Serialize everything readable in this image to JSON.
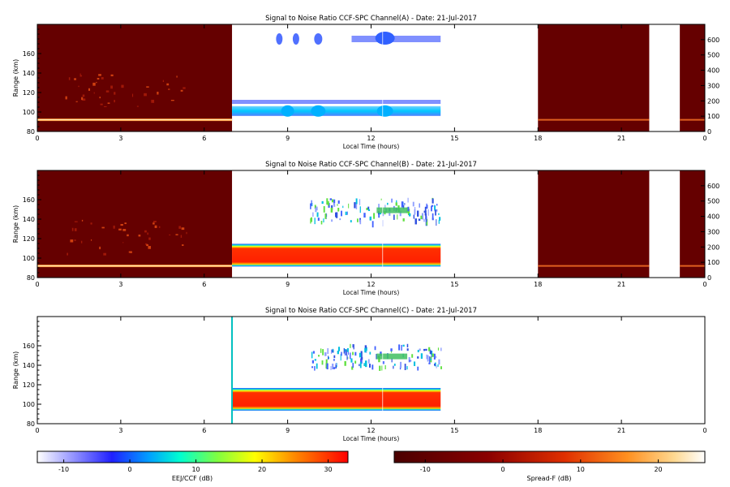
{
  "page": {
    "colorbar_left_label": "EEJ/CCF (dB)",
    "colorbar_right_label": "Spread-F (dB)"
  },
  "chart_data": [
    {
      "type": "heatmap",
      "title": "Signal to Noise Ratio CCF-SPC Channel(A) - Date: 21-Jul-2017",
      "xlabel": "Local Time (hours)",
      "ylabel": "Range (km)",
      "xlim": [
        0,
        24
      ],
      "ylim": [
        80,
        190
      ],
      "xticks": [
        "0",
        "3",
        "6",
        "9",
        "12",
        "15",
        "18",
        "21",
        "0"
      ],
      "yticks": [
        "80",
        "100",
        "120",
        "140",
        "160"
      ],
      "right_ylim": [
        0,
        700
      ],
      "right_yticks": [
        "0",
        "100",
        "200",
        "300",
        "400",
        "500",
        "600"
      ],
      "spreadf_blocks_hours": [
        [
          0,
          7
        ],
        [
          18,
          22
        ],
        [
          23.1,
          24
        ]
      ],
      "spreadf_layer_range_km": 92,
      "eej_time_hours": [
        7,
        14.5
      ],
      "eej_layers": [
        {
          "range_km": 101,
          "snr_db": 0
        },
        {
          "range_km": 110,
          "snr_db": -12
        },
        {
          "range_km": 175,
          "snr_db": -10
        }
      ],
      "data_gap_hours": [
        22,
        23.1
      ]
    },
    {
      "type": "heatmap",
      "title": "Signal to Noise Ratio CCF-SPC Channel(B) - Date: 21-Jul-2017",
      "xlabel": "Local Time (hours)",
      "ylabel": "Range (km)",
      "xlim": [
        0,
        24
      ],
      "ylim": [
        80,
        190
      ],
      "xticks": [
        "0",
        "3",
        "6",
        "9",
        "12",
        "15",
        "18",
        "21",
        "0"
      ],
      "yticks": [
        "80",
        "100",
        "120",
        "140",
        "160"
      ],
      "right_ylim": [
        0,
        700
      ],
      "right_yticks": [
        "0",
        "100",
        "200",
        "300",
        "400",
        "500",
        "600"
      ],
      "spreadf_blocks_hours": [
        [
          0,
          7
        ],
        [
          18,
          22
        ],
        [
          23.1,
          24
        ]
      ],
      "spreadf_layer_range_km": 92,
      "eej_time_hours": [
        7,
        14.5
      ],
      "eej_layers": [
        {
          "range_km": 103,
          "snr_db": 30
        },
        {
          "range_km": 150,
          "snr_db": 5
        }
      ],
      "data_gap_hours": [
        22,
        23.1
      ]
    },
    {
      "type": "heatmap",
      "title": "Signal to Noise Ratio CCF-SPC Channel(C) - Date: 21-Jul-2017",
      "xlabel": "Local Time (hours)",
      "ylabel": "Range (km)",
      "xlim": [
        0,
        24
      ],
      "ylim": [
        80,
        190
      ],
      "xticks": [
        "0",
        "3",
        "6",
        "9",
        "12",
        "15",
        "18",
        "21",
        "0"
      ],
      "yticks": [
        "80",
        "100",
        "120",
        "140",
        "160"
      ],
      "eej_time_hours": [
        7,
        14.5
      ],
      "eej_layers": [
        {
          "range_km": 105,
          "snr_db": 30
        },
        {
          "range_km": 148,
          "snr_db": 5
        }
      ]
    },
    {
      "type": "colorbar",
      "label": "EEJ/CCF (dB)",
      "colormap": "rainbow",
      "range": [
        -14,
        33
      ],
      "ticks": [
        "-10",
        "0",
        "10",
        "20",
        "30"
      ]
    },
    {
      "type": "colorbar",
      "label": "Spread-F (dB)",
      "colormap": "hot",
      "range": [
        -14,
        26
      ],
      "ticks": [
        "-10",
        "0",
        "10",
        "20"
      ]
    }
  ]
}
